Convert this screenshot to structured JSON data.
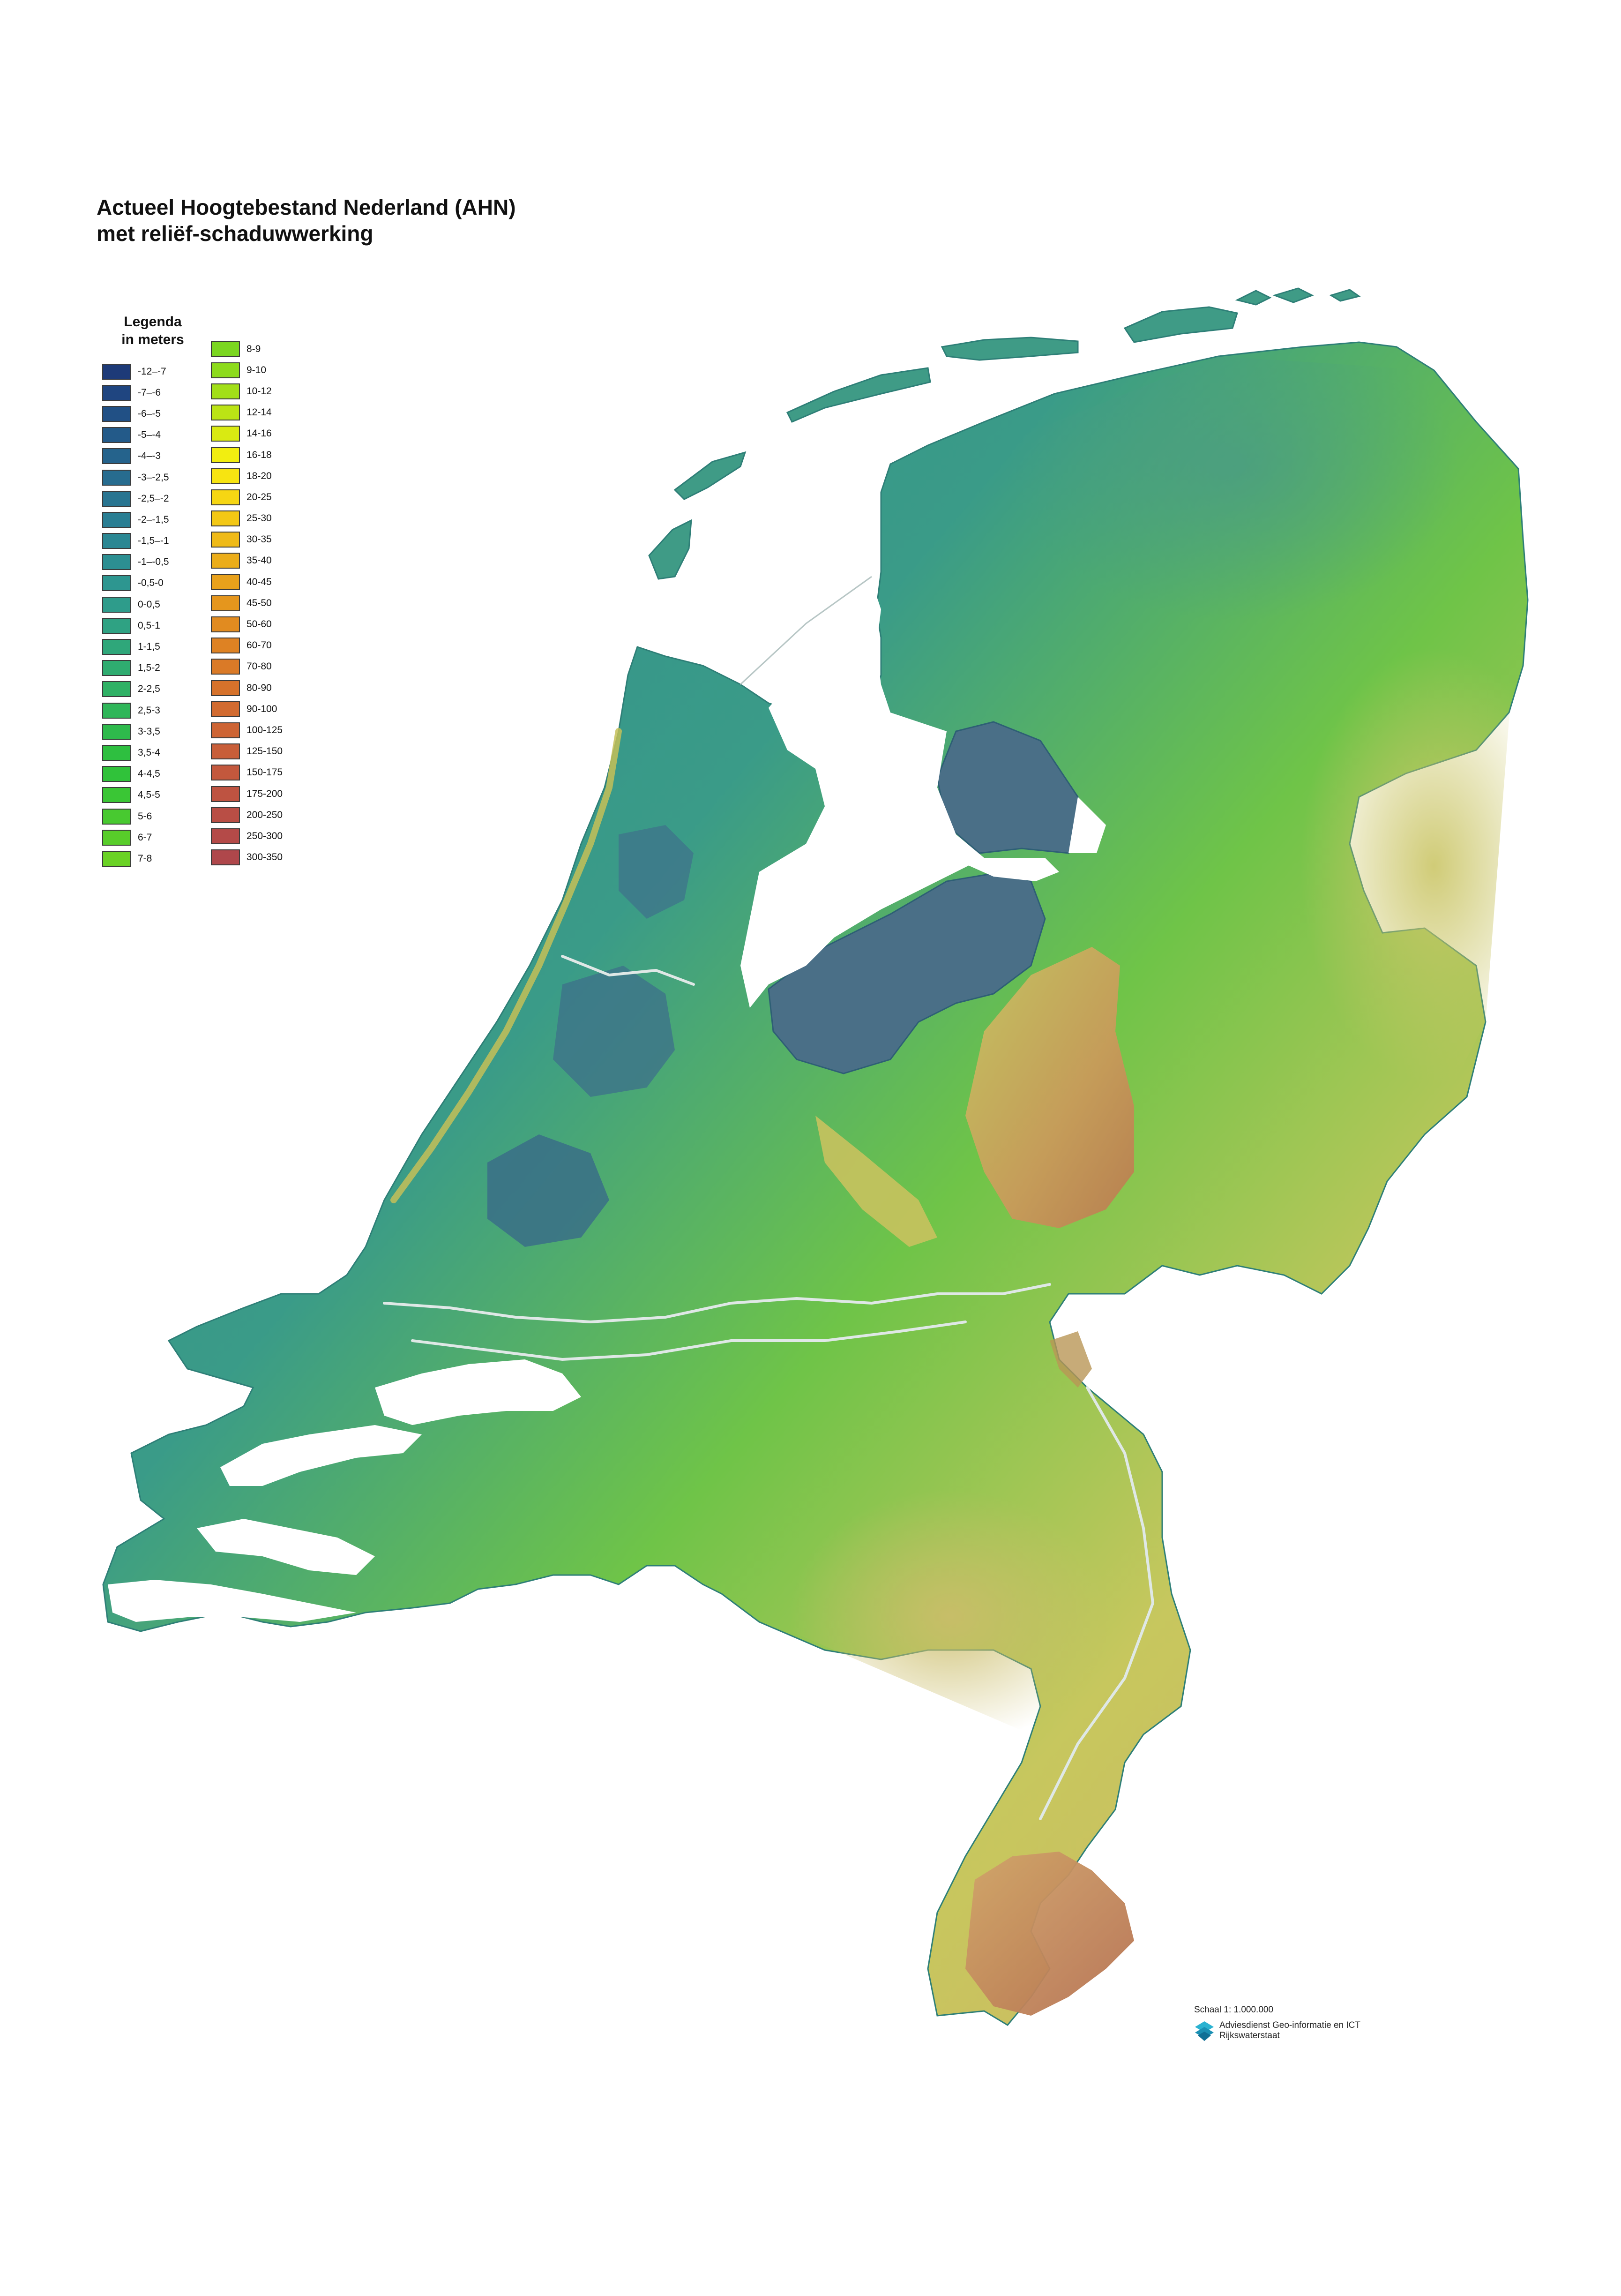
{
  "title": {
    "line1": "Actueel Hoogtebestand Nederland (AHN)",
    "line2": "met reliëf-schaduwwerking"
  },
  "legend": {
    "heading_line1": "Legenda",
    "heading_line2": "in meters",
    "column1": [
      {
        "label": "-12–-7",
        "color": "#1d3a78"
      },
      {
        "label": "-7–-6",
        "color": "#1f4580"
      },
      {
        "label": "-6–-5",
        "color": "#215085"
      },
      {
        "label": "-5–-4",
        "color": "#235a89"
      },
      {
        "label": "-4–-3",
        "color": "#25638c"
      },
      {
        "label": "-3–-2,5",
        "color": "#276c8f"
      },
      {
        "label": "-2,5–-2",
        "color": "#297591"
      },
      {
        "label": "-2–-1,5",
        "color": "#2a7e93"
      },
      {
        "label": "-1,5–-1",
        "color": "#2b8793"
      },
      {
        "label": "-1–-0,5",
        "color": "#2c8f92"
      },
      {
        "label": "-0,5-0",
        "color": "#2d9690"
      },
      {
        "label": "0-0,5",
        "color": "#2e9c8b"
      },
      {
        "label": "0,5-1",
        "color": "#2fa283"
      },
      {
        "label": "1-1,5",
        "color": "#2fa77a"
      },
      {
        "label": "1,5-2",
        "color": "#2fac70"
      },
      {
        "label": "2-2,5",
        "color": "#2fb165"
      },
      {
        "label": "2,5-3",
        "color": "#2fb659"
      },
      {
        "label": "3-3,5",
        "color": "#2eba4c"
      },
      {
        "label": "3,5-4",
        "color": "#2ebf40"
      },
      {
        "label": "4-4,5",
        "color": "#30c23a"
      },
      {
        "label": "4,5-5",
        "color": "#3ac635"
      },
      {
        "label": "5-6",
        "color": "#48c930"
      },
      {
        "label": "6-7",
        "color": "#58cd2a"
      },
      {
        "label": "7-8",
        "color": "#6ad225"
      }
    ],
    "column2": [
      {
        "label": "8-9",
        "color": "#7bd620"
      },
      {
        "label": "9-10",
        "color": "#8ddb1c"
      },
      {
        "label": "10-12",
        "color": "#a2df18"
      },
      {
        "label": "12-14",
        "color": "#bbe415"
      },
      {
        "label": "14-16",
        "color": "#d9ea12"
      },
      {
        "label": "16-18",
        "color": "#f2ee10"
      },
      {
        "label": "18-20",
        "color": "#f7e411"
      },
      {
        "label": "20-25",
        "color": "#f6d613"
      },
      {
        "label": "25-30",
        "color": "#f3c815"
      },
      {
        "label": "30-35",
        "color": "#efba17"
      },
      {
        "label": "35-40",
        "color": "#ebad19"
      },
      {
        "label": "40-45",
        "color": "#e8a11b"
      },
      {
        "label": "45-50",
        "color": "#e5961d"
      },
      {
        "label": "50-60",
        "color": "#e18b20"
      },
      {
        "label": "60-70",
        "color": "#de8223"
      },
      {
        "label": "70-80",
        "color": "#da7a27"
      },
      {
        "label": "80-90",
        "color": "#d6722b"
      },
      {
        "label": "90-100",
        "color": "#d26b30"
      },
      {
        "label": "100-125",
        "color": "#cd6434"
      },
      {
        "label": "125-150",
        "color": "#c85e39"
      },
      {
        "label": "150-175",
        "color": "#c3583d"
      },
      {
        "label": "175-200",
        "color": "#be5341"
      },
      {
        "label": "200-250",
        "color": "#b94e45"
      },
      {
        "label": "250-300",
        "color": "#b44a48"
      },
      {
        "label": "300-350",
        "color": "#af474b"
      }
    ]
  },
  "scale": "Schaal 1: 1.000.000",
  "organisation": {
    "line1": "Adviesdienst Geo-informatie en ICT",
    "line2": "Rijkswaterstaat",
    "logo_icon": "rijkswaterstaat-logo-icon"
  }
}
